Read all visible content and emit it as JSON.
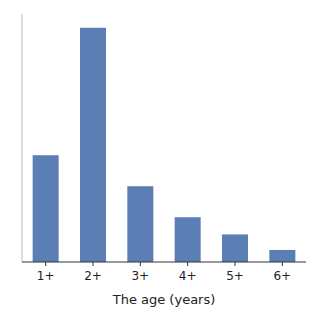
{
  "chart_data": {
    "type": "bar",
    "xlabel": "The age (years)",
    "categories": [
      "1+",
      "2+",
      "3+",
      "4+",
      "5+",
      "6+"
    ],
    "values": [
      31,
      68,
      22,
      13,
      8,
      3.5
    ],
    "ylim": [
      0,
      72
    ],
    "color": "#5b7fb5",
    "tick_labels": "x"
  }
}
